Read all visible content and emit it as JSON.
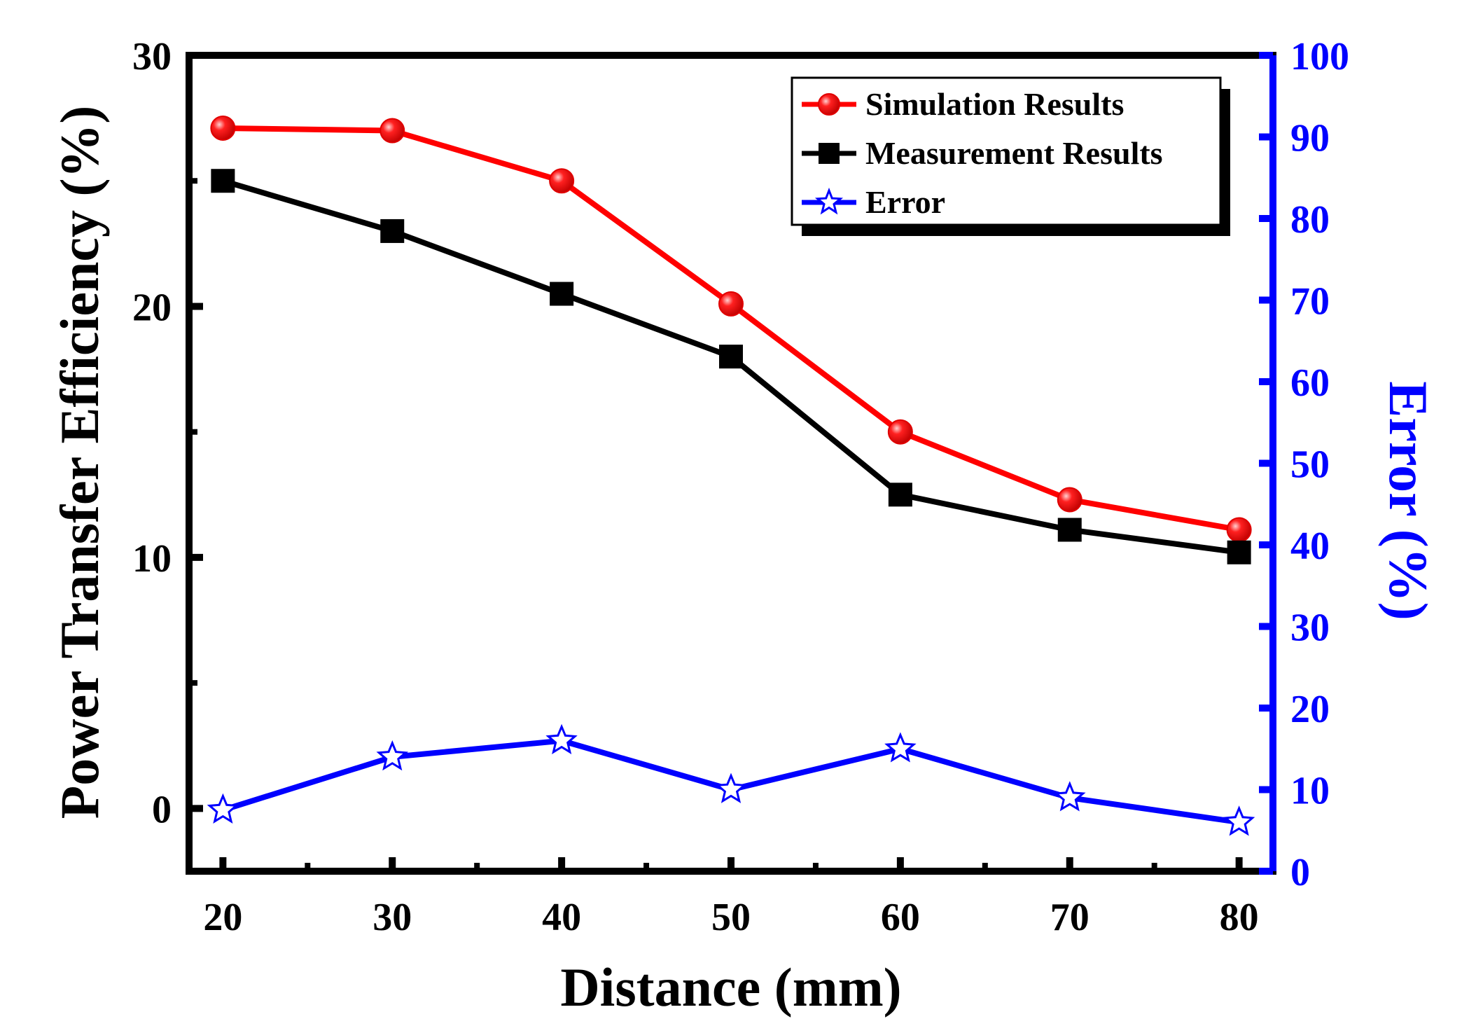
{
  "chart_data": {
    "type": "line",
    "x": [
      20,
      30,
      40,
      50,
      60,
      70,
      80
    ],
    "xlabel": "Distance (mm)",
    "ylabel": "Power Transfer Efficiency (%)",
    "y2label": "Error (%)",
    "xlim": [
      18,
      82
    ],
    "ylim": [
      -2.5,
      30
    ],
    "y2lim": [
      0,
      100
    ],
    "xticks": [
      20,
      30,
      40,
      50,
      60,
      70,
      80
    ],
    "yticks": [
      0,
      10,
      20,
      30
    ],
    "y2ticks": [
      0,
      10,
      20,
      30,
      40,
      50,
      60,
      70,
      80,
      90,
      100
    ],
    "legend_position": "top-right",
    "grid": false,
    "series": [
      {
        "name": "Simulation Results",
        "axis": "left",
        "color": "#ff0000",
        "marker": "circle",
        "values": [
          27.1,
          27.0,
          25.0,
          20.1,
          15.0,
          12.3,
          11.1
        ]
      },
      {
        "name": "Measurement Results",
        "axis": "left",
        "color": "#000000",
        "marker": "square",
        "values": [
          25.0,
          23.0,
          20.5,
          18.0,
          12.5,
          11.1,
          10.2
        ]
      },
      {
        "name": "Error",
        "axis": "right",
        "color": "#0000ff",
        "marker": "star",
        "values": [
          7.5,
          14.0,
          16.0,
          10.0,
          15.0,
          9.0,
          6.0
        ]
      }
    ]
  }
}
